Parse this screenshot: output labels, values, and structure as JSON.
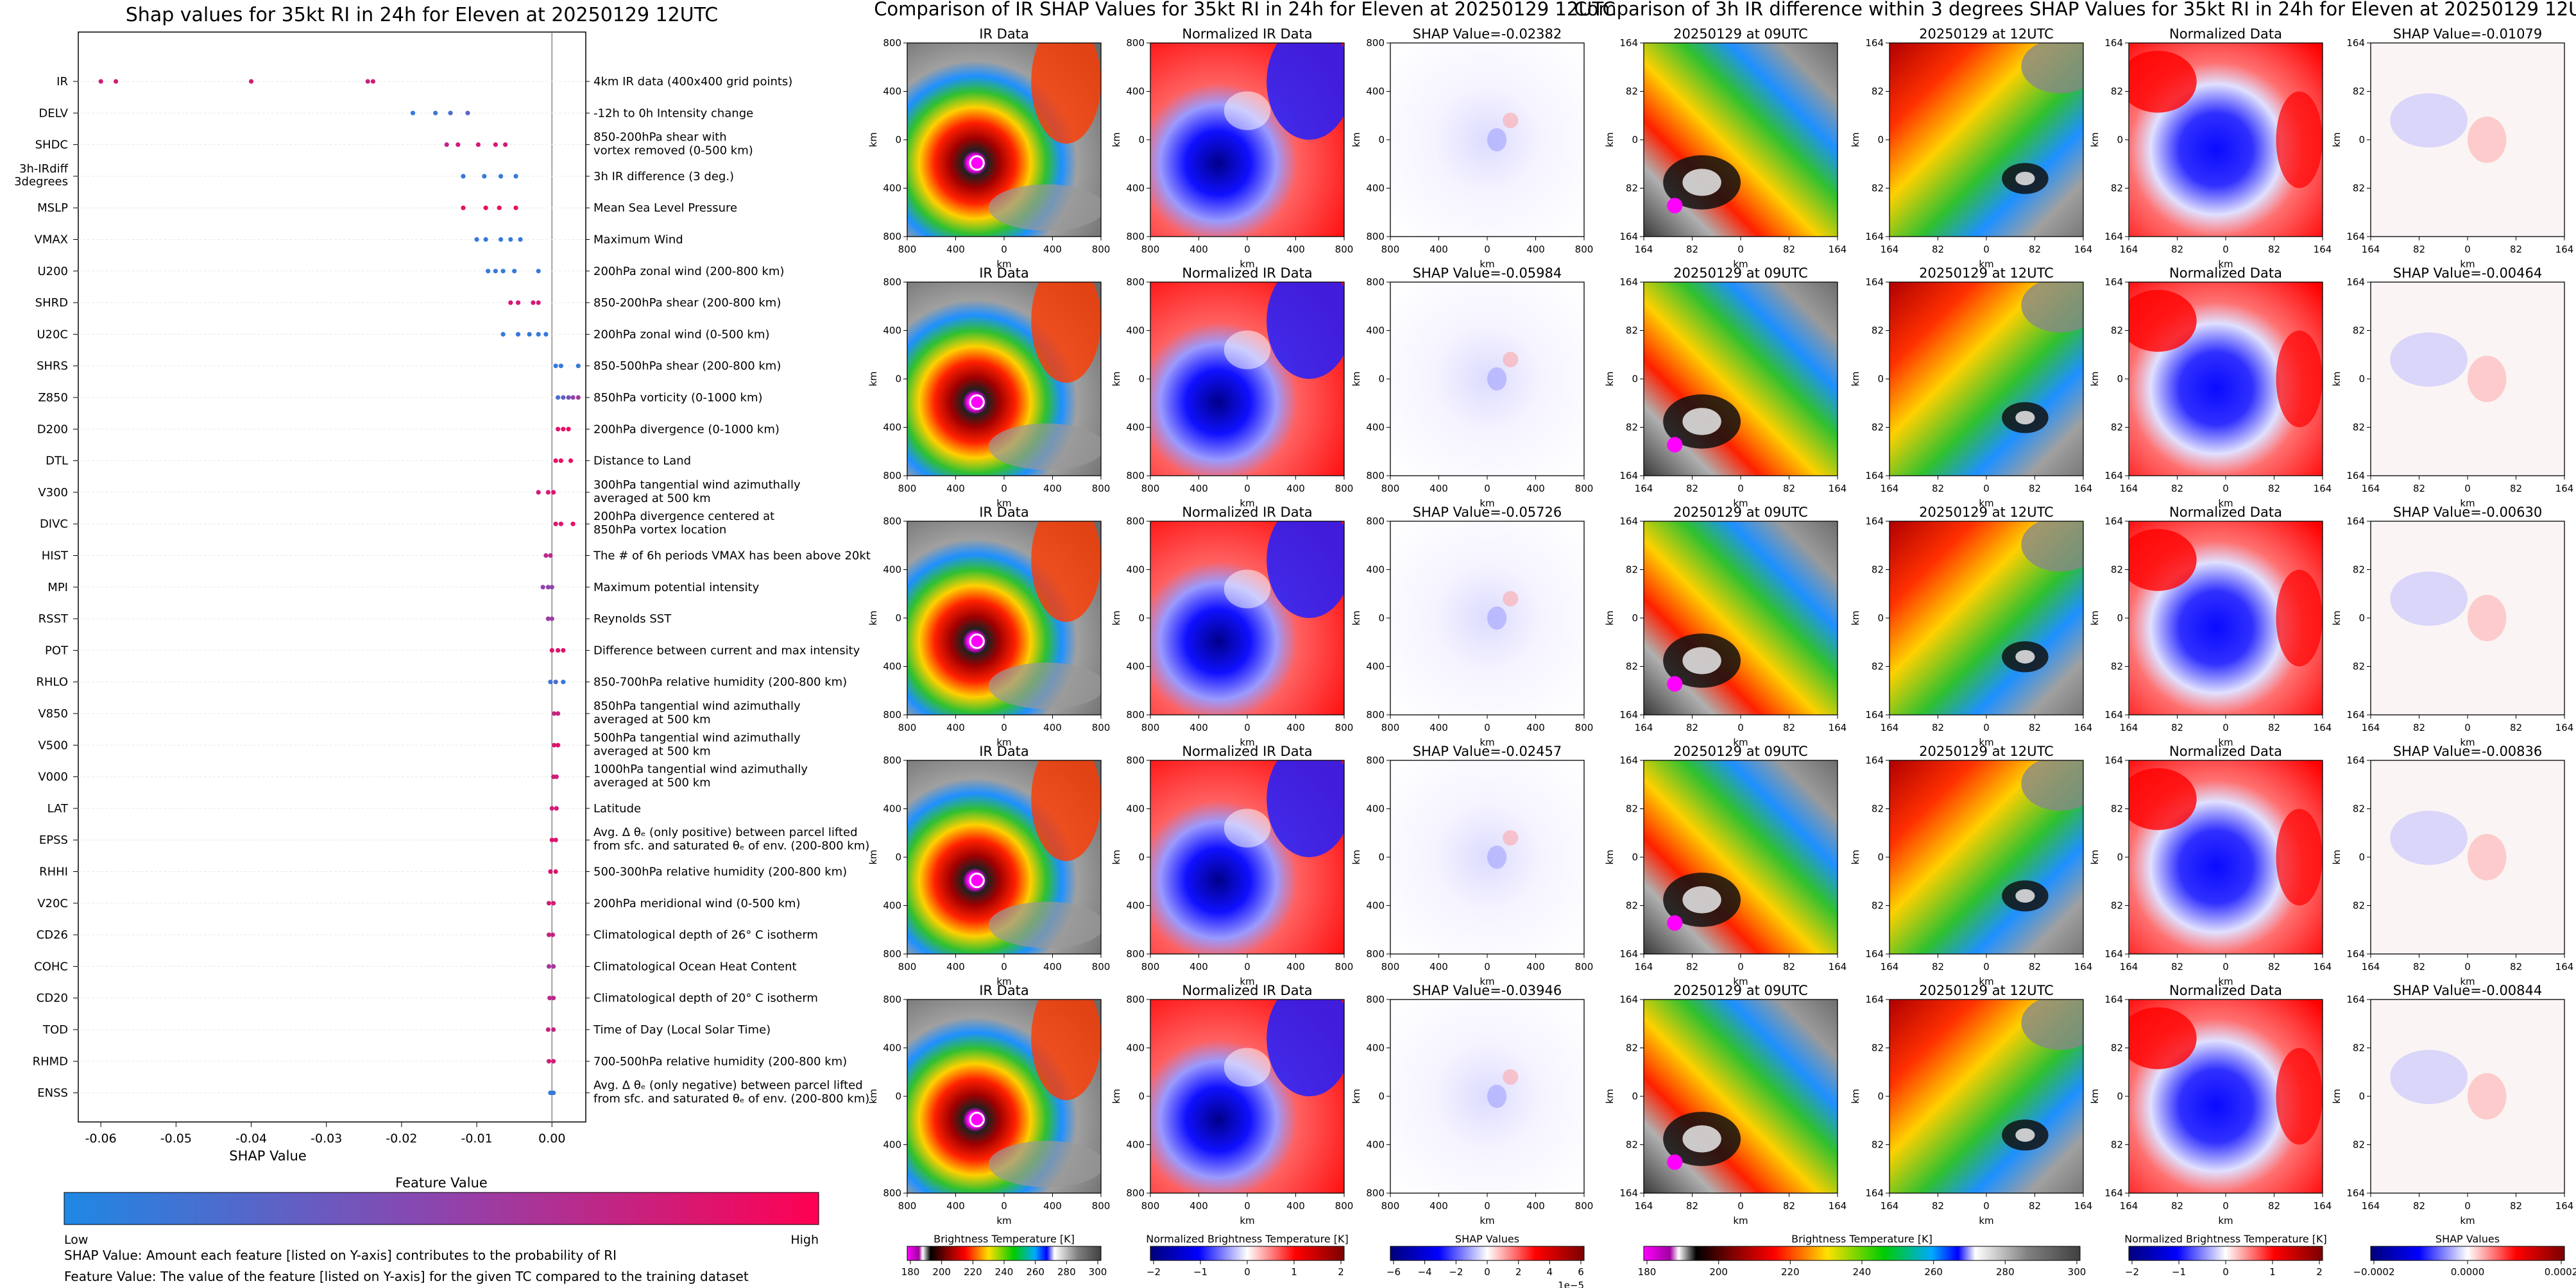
{
  "chart_data": [
    {
      "type": "scatter",
      "title": "Shap values for 35kt RI in 24h for Eleven at 20250129 12UTC",
      "xlabel": "SHAP Value",
      "xlim": [
        -0.063,
        0.0045
      ],
      "x_ticks": [
        "-0.06",
        "-0.05",
        "-0.04",
        "-0.03",
        "-0.02",
        "-0.01",
        "0.00"
      ],
      "x_tick_values": [
        -0.06,
        -0.05,
        -0.04,
        -0.03,
        -0.02,
        -0.01,
        0.0
      ],
      "zero_line": 0.0,
      "colorbar": {
        "label": "Feature Value",
        "low": "Low",
        "high": "High",
        "colors": [
          "#1e88e5",
          "#8e44ad",
          "#ff0052"
        ]
      },
      "notes": [
        "SHAP Value: Amount each feature [listed on Y-axis] contributes to the probability of RI",
        "Feature Value: The value of the feature [listed on Y-axis] for the given TC compared to the training dataset"
      ],
      "features": [
        {
          "name": "IR",
          "desc": [
            "4km IR data (400x400 grid points)"
          ],
          "points": [
            [
              -0.06,
              0.8
            ],
            [
              -0.058,
              0.8
            ],
            [
              -0.04,
              0.8
            ],
            [
              -0.0245,
              0.75
            ],
            [
              -0.0238,
              0.8
            ]
          ]
        },
        {
          "name": "DELV",
          "desc": [
            "-12h to 0h Intensity change"
          ],
          "points": [
            [
              -0.0185,
              0.1
            ],
            [
              -0.0155,
              0.15
            ],
            [
              -0.0135,
              0.2
            ],
            [
              -0.0112,
              0.25
            ]
          ]
        },
        {
          "name": "SHDC",
          "desc": [
            "850-200hPa shear with",
            "vortex removed (0-500 km)"
          ],
          "points": [
            [
              -0.014,
              0.7
            ],
            [
              -0.0125,
              0.8
            ],
            [
              -0.0098,
              0.8
            ],
            [
              -0.0075,
              0.8
            ],
            [
              -0.0062,
              0.8
            ]
          ]
        },
        {
          "name": "3h-IRdiff\n3degrees",
          "desc": [
            "3h IR difference (3 deg.)"
          ],
          "points": [
            [
              -0.0118,
              0.1
            ],
            [
              -0.009,
              0.1
            ],
            [
              -0.0068,
              0.1
            ],
            [
              -0.0048,
              0.1
            ]
          ]
        },
        {
          "name": "MSLP",
          "desc": [
            "Mean Sea Level Pressure"
          ],
          "points": [
            [
              -0.0118,
              0.9
            ],
            [
              -0.0088,
              0.9
            ],
            [
              -0.007,
              0.9
            ],
            [
              -0.0048,
              0.9
            ]
          ]
        },
        {
          "name": "VMAX",
          "desc": [
            "Maximum Wind"
          ],
          "points": [
            [
              -0.01,
              0.1
            ],
            [
              -0.0088,
              0.1
            ],
            [
              -0.0068,
              0.1
            ],
            [
              -0.0055,
              0.1
            ],
            [
              -0.0042,
              0.1
            ]
          ]
        },
        {
          "name": "U200",
          "desc": [
            "200hPa zonal wind (200-800 km)"
          ],
          "points": [
            [
              -0.0085,
              0.1
            ],
            [
              -0.0075,
              0.1
            ],
            [
              -0.0065,
              0.1
            ],
            [
              -0.005,
              0.1
            ],
            [
              -0.0018,
              0.1
            ]
          ]
        },
        {
          "name": "SHRD",
          "desc": [
            "850-200hPa shear (200-800 km)"
          ],
          "points": [
            [
              -0.0055,
              0.85
            ],
            [
              -0.0045,
              0.8
            ],
            [
              -0.0025,
              0.8
            ],
            [
              -0.0018,
              0.8
            ]
          ]
        },
        {
          "name": "U20C",
          "desc": [
            "200hPa zonal wind (0-500 km)"
          ],
          "points": [
            [
              -0.0065,
              0.1
            ],
            [
              -0.0045,
              0.1
            ],
            [
              -0.003,
              0.1
            ],
            [
              -0.0018,
              0.1
            ],
            [
              -0.0008,
              0.1
            ]
          ]
        },
        {
          "name": "SHRS",
          "desc": [
            "850-500hPa shear (200-800 km)"
          ],
          "points": [
            [
              0.0005,
              0.1
            ],
            [
              0.0012,
              0.1
            ],
            [
              0.0035,
              0.1
            ]
          ]
        },
        {
          "name": "Z850",
          "desc": [
            "850hPa vorticity (0-1000 km)"
          ],
          "points": [
            [
              0.0008,
              0.2
            ],
            [
              0.0015,
              0.3
            ],
            [
              0.0022,
              0.4
            ],
            [
              0.0028,
              0.5
            ],
            [
              0.0035,
              0.6
            ]
          ]
        },
        {
          "name": "D200",
          "desc": [
            "200hPa divergence (0-1000 km)"
          ],
          "points": [
            [
              0.0008,
              0.85
            ],
            [
              0.0015,
              0.9
            ],
            [
              0.0022,
              0.9
            ]
          ]
        },
        {
          "name": "DTL",
          "desc": [
            "Distance to Land"
          ],
          "points": [
            [
              0.0005,
              0.9
            ],
            [
              0.0012,
              0.9
            ],
            [
              0.0025,
              0.9
            ]
          ]
        },
        {
          "name": "V300",
          "desc": [
            "300hPa tangential wind azimuthally",
            "averaged at 500 km"
          ],
          "points": [
            [
              -0.0018,
              0.8
            ],
            [
              -0.0005,
              0.8
            ],
            [
              0.0002,
              0.85
            ]
          ]
        },
        {
          "name": "DIVC",
          "desc": [
            "200hPa divergence centered at",
            "850hPa vortex location"
          ],
          "points": [
            [
              0.0005,
              0.85
            ],
            [
              0.0012,
              0.85
            ],
            [
              0.0028,
              0.9
            ]
          ]
        },
        {
          "name": "HIST",
          "desc": [
            "The # of 6h periods VMAX has been above 20kt"
          ],
          "points": [
            [
              -0.0008,
              0.7
            ],
            [
              -0.0002,
              0.7
            ]
          ]
        },
        {
          "name": "MPI",
          "desc": [
            "Maximum potential intensity"
          ],
          "points": [
            [
              -0.0012,
              0.5
            ],
            [
              -0.0005,
              0.5
            ],
            [
              0.0,
              0.5
            ]
          ]
        },
        {
          "name": "RSST",
          "desc": [
            "Reynolds SST"
          ],
          "points": [
            [
              -0.0005,
              0.55
            ],
            [
              0.0,
              0.55
            ]
          ]
        },
        {
          "name": "POT",
          "desc": [
            "Difference between current and max intensity"
          ],
          "points": [
            [
              0.0,
              0.85
            ],
            [
              0.0008,
              0.85
            ],
            [
              0.0015,
              0.85
            ]
          ]
        },
        {
          "name": "RHLO",
          "desc": [
            "850-700hPa relative humidity (200-800 km)"
          ],
          "points": [
            [
              -0.0002,
              0.15
            ],
            [
              0.0005,
              0.2
            ],
            [
              0.0015,
              0.1
            ]
          ]
        },
        {
          "name": "V850",
          "desc": [
            "850hPa tangential wind azimuthally",
            "averaged at 500 km"
          ],
          "points": [
            [
              0.0003,
              0.75
            ],
            [
              0.0008,
              0.75
            ]
          ]
        },
        {
          "name": "V500",
          "desc": [
            "500hPa tangential wind azimuthally",
            "averaged at 500 km"
          ],
          "points": [
            [
              0.0003,
              0.85
            ],
            [
              0.0008,
              0.85
            ]
          ]
        },
        {
          "name": "V000",
          "desc": [
            "1000hPa tangential wind azimuthally",
            "averaged at 500 km"
          ],
          "points": [
            [
              0.0002,
              0.8
            ],
            [
              0.0006,
              0.8
            ]
          ]
        },
        {
          "name": "LAT",
          "desc": [
            "Latitude"
          ],
          "points": [
            [
              0.0,
              0.8
            ],
            [
              0.0006,
              0.8
            ]
          ]
        },
        {
          "name": "EPSS",
          "desc": [
            "Avg. Δ θₑ (only positive) between parcel lifted",
            "from sfc. and saturated θₑ of env. (200-800 km)"
          ],
          "points": [
            [
              0.0,
              0.85
            ],
            [
              0.0005,
              0.85
            ]
          ]
        },
        {
          "name": "RHHI",
          "desc": [
            "500-300hPa relative humidity (200-800 km)"
          ],
          "points": [
            [
              -0.0002,
              0.85
            ],
            [
              0.0005,
              0.85
            ]
          ]
        },
        {
          "name": "V20C",
          "desc": [
            "200hPa meridional wind (0-500 km)"
          ],
          "points": [
            [
              -0.0004,
              0.8
            ],
            [
              0.0002,
              0.8
            ]
          ]
        },
        {
          "name": "CD26",
          "desc": [
            "Climatological depth of 26° C isotherm"
          ],
          "points": [
            [
              -0.0004,
              0.75
            ],
            [
              0.0001,
              0.75
            ]
          ]
        },
        {
          "name": "COHC",
          "desc": [
            "Climatological Ocean Heat Content"
          ],
          "points": [
            [
              -0.0004,
              0.6
            ],
            [
              0.0002,
              0.6
            ]
          ]
        },
        {
          "name": "CD20",
          "desc": [
            "Climatological depth of 20° C isotherm"
          ],
          "points": [
            [
              -0.0003,
              0.7
            ],
            [
              0.0002,
              0.7
            ]
          ]
        },
        {
          "name": "TOD",
          "desc": [
            "Time of Day (Local Solar Time)"
          ],
          "points": [
            [
              -0.0005,
              0.75
            ],
            [
              0.0002,
              0.75
            ]
          ]
        },
        {
          "name": "RHMD",
          "desc": [
            "700-500hPa relative humidity (200-800 km)"
          ],
          "points": [
            [
              -0.0004,
              0.8
            ],
            [
              0.0002,
              0.8
            ]
          ]
        },
        {
          "name": "ENSS",
          "desc": [
            "Avg. Δ θₑ (only negative) between parcel lifted",
            "from sfc. and saturated θₑ of env. (200-800 km)"
          ],
          "points": [
            [
              -0.0002,
              0.1
            ],
            [
              0.0002,
              0.1
            ]
          ]
        }
      ]
    },
    {
      "type": "heatmap",
      "title": "Comparison of IR SHAP Values for 35kt RI in 24h for Eleven at 20250129 12UTC",
      "axis_label": "km",
      "ticks": [
        "800",
        "400",
        "0",
        "400",
        "800"
      ],
      "rows": [
        [
          "IR Data",
          "Normalized IR Data",
          "SHAP Value=-0.02382"
        ],
        [
          "IR Data",
          "Normalized IR Data",
          "SHAP Value=-0.05984"
        ],
        [
          "IR Data",
          "Normalized IR Data",
          "SHAP Value=-0.05726"
        ],
        [
          "IR Data",
          "Normalized IR Data",
          "SHAP Value=-0.02457"
        ],
        [
          "IR Data",
          "Normalized IR Data",
          "SHAP Value=-0.03946"
        ]
      ],
      "colorbars": [
        {
          "label": "Brightness Temperature [K]",
          "ticks": [
            "180",
            "200",
            "220",
            "240",
            "260",
            "280",
            "300"
          ]
        },
        {
          "label": "Normalized Brightness Temperature [K]",
          "ticks": [
            "−2",
            "−1",
            "0",
            "1",
            "2"
          ]
        },
        {
          "label": "SHAP Values",
          "ticks": [
            "−6",
            "−4",
            "−2",
            "0",
            "2",
            "4",
            "6"
          ],
          "offset": "1e−5"
        }
      ]
    },
    {
      "type": "heatmap",
      "title": "Comparison of 3h IR difference within 3 degrees SHAP Values for 35kt RI in 24h for Eleven at 20250129 12UTC",
      "axis_label": "km",
      "ticks": [
        "164",
        "82",
        "0",
        "82",
        "164"
      ],
      "rows": [
        [
          "20250129 at 09UTC",
          "20250129 at 12UTC",
          "Normalized Data",
          "SHAP Value=-0.01079"
        ],
        [
          "20250129 at 09UTC",
          "20250129 at 12UTC",
          "Normalized Data",
          "SHAP Value=-0.00464"
        ],
        [
          "20250129 at 09UTC",
          "20250129 at 12UTC",
          "Normalized Data",
          "SHAP Value=-0.00630"
        ],
        [
          "20250129 at 09UTC",
          "20250129 at 12UTC",
          "Normalized Data",
          "SHAP Value=-0.00836"
        ],
        [
          "20250129 at 09UTC",
          "20250129 at 12UTC",
          "Normalized Data",
          "SHAP Value=-0.00844"
        ]
      ],
      "colorbars": [
        {
          "label": "Brightness Temperature [K]",
          "ticks": [
            "180",
            "200",
            "220",
            "240",
            "260",
            "280",
            "300"
          ]
        },
        {
          "label": "Normalized Brightness Temperature [K]",
          "ticks": [
            "−2",
            "−1",
            "0",
            "1",
            "2"
          ]
        },
        {
          "label": "SHAP Values",
          "ticks": [
            "−0.0002",
            "0.0000",
            "0.0002"
          ]
        }
      ]
    }
  ]
}
